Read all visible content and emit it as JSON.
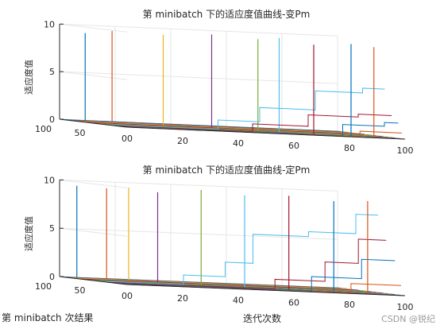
{
  "chart_data": [
    {
      "type": "line",
      "title": "第 minibatch 下的适应度值曲线-变Pm",
      "zlabel": "适应度值",
      "xlabel": "",
      "ylabel": "",
      "xlim": [
        0,
        100
      ],
      "ylim": [
        0,
        100
      ],
      "zlim": [
        0,
        10
      ],
      "x_ticks": [
        "00",
        "20",
        "40",
        "60",
        "80",
        "100"
      ],
      "y_ticks": [
        "100",
        "50"
      ],
      "z_ticks": [
        "0",
        "5",
        "10"
      ],
      "grid": true,
      "series": [
        {
          "y": 95,
          "spikes": [
            [
              8,
              9.2
            ]
          ],
          "steps": [
            [
              0,
              0
            ]
          ]
        },
        {
          "y": 84,
          "spikes": [
            [
              15,
              9.6
            ]
          ],
          "steps": [
            [
              0,
              0
            ]
          ]
        },
        {
          "y": 70,
          "spikes": [
            [
              30,
              9.5
            ]
          ],
          "steps": [
            [
              0,
              0
            ]
          ]
        },
        {
          "y": 60,
          "spikes": [
            [
              45,
              9.8
            ]
          ],
          "steps": [
            [
              0,
              0
            ]
          ]
        },
        {
          "y": 45,
          "spikes": [
            [
              58,
              9.6
            ]
          ],
          "steps": [
            [
              0,
              0
            ]
          ]
        },
        {
          "y": 30,
          "spikes": [
            [
              62,
              9.9
            ]
          ],
          "steps": [
            [
              0,
              0
            ],
            [
              40,
              1.0
            ],
            [
              55,
              2.5
            ],
            [
              75,
              4.5
            ],
            [
              92,
              5.0
            ]
          ]
        },
        {
          "y": 20,
          "spikes": [
            [
              72,
              9.4
            ]
          ],
          "steps": [
            [
              0,
              0
            ],
            [
              50,
              0.8
            ],
            [
              70,
              2.0
            ],
            [
              88,
              2.3
            ]
          ]
        },
        {
          "y": 10,
          "spikes": [
            [
              83,
              9.7
            ]
          ],
          "steps": [
            [
              0,
              0
            ],
            [
              80,
              1.2
            ],
            [
              95,
              1.6
            ]
          ]
        },
        {
          "y": 5,
          "spikes": [
            [
              90,
              9.5
            ]
          ],
          "steps": [
            [
              0,
              0
            ],
            [
              85,
              0.6
            ]
          ]
        }
      ]
    },
    {
      "type": "line",
      "title": "第 minibatch 下的适应度值曲线-定Pm",
      "zlabel": "适应度值",
      "xlabel": "迭代次数",
      "ylabel": "第 minibatch 次结果",
      "xlim": [
        0,
        100
      ],
      "ylim": [
        0,
        100
      ],
      "zlim": [
        0,
        10
      ],
      "x_ticks": [
        "00",
        "20",
        "40",
        "60",
        "80",
        "100"
      ],
      "y_ticks": [
        "100",
        "50"
      ],
      "z_ticks": [
        "0",
        "5",
        "10"
      ],
      "grid": true,
      "series": [
        {
          "y": 95,
          "spikes": [
            [
              5,
              9.5
            ]
          ],
          "steps": [
            [
              0,
              0
            ]
          ]
        },
        {
          "y": 88,
          "spikes": [
            [
              14,
              9.4
            ]
          ],
          "steps": [
            [
              0,
              0
            ]
          ]
        },
        {
          "y": 80,
          "spikes": [
            [
              20,
              9.6
            ]
          ],
          "steps": [
            [
              0,
              0
            ]
          ]
        },
        {
          "y": 70,
          "spikes": [
            [
              28,
              9.3
            ]
          ],
          "steps": [
            [
              0,
              0
            ]
          ]
        },
        {
          "y": 55,
          "spikes": [
            [
              40,
              9.8
            ]
          ],
          "steps": [
            [
              0,
              0
            ]
          ]
        },
        {
          "y": 40,
          "spikes": [
            [
              52,
              9.5
            ]
          ],
          "steps": [
            [
              0,
              0
            ],
            [
              30,
              1.0
            ],
            [
              45,
              2.5
            ],
            [
              55,
              5.5
            ],
            [
              75,
              6.0
            ],
            [
              92,
              8.0
            ]
          ]
        },
        {
          "y": 28,
          "spikes": [
            [
              65,
              9.7
            ]
          ],
          "steps": [
            [
              0,
              0
            ],
            [
              60,
              1.0
            ],
            [
              78,
              3.0
            ],
            [
              90,
              5.5
            ]
          ]
        },
        {
          "y": 15,
          "spikes": [
            [
              78,
              9.4
            ]
          ],
          "steps": [
            [
              0,
              0
            ],
            [
              70,
              1.5
            ],
            [
              88,
              3.5
            ]
          ]
        },
        {
          "y": 6,
          "spikes": [
            [
              88,
              9.6
            ]
          ],
          "steps": [
            [
              0,
              0
            ],
            [
              82,
              1.0
            ]
          ]
        }
      ]
    }
  ],
  "watermark": "CSDN @锐纪"
}
